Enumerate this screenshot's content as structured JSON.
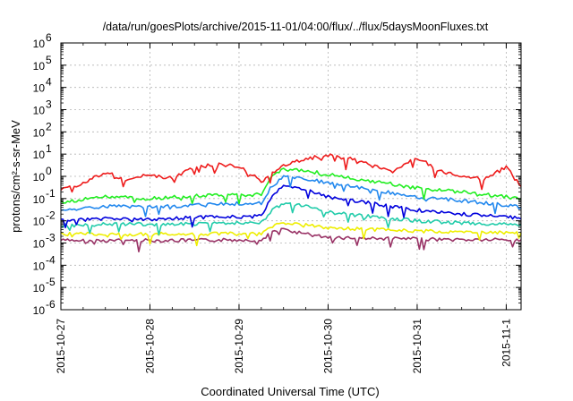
{
  "chart_data": {
    "type": "line",
    "title": "/data/run/goesPlots/archive/2015-11-01/04:00/flux/../flux/5daysMoonFluxes.txt",
    "xlabel": "Coordinated Universal Time (UTC)",
    "ylabel": "protons/cm²-s-sr-MeV",
    "yscale": "log",
    "ylim": [
      1e-06,
      1000000.0
    ],
    "xlim": [
      "2015-10-27T00:00",
      "2015-11-01T04:00"
    ],
    "grid": true,
    "legend": "none",
    "y_tick_labels": [
      {
        "base": "10",
        "exp": "-6"
      },
      {
        "base": "10",
        "exp": "-5"
      },
      {
        "base": "10",
        "exp": "-4"
      },
      {
        "base": "10",
        "exp": "-3"
      },
      {
        "base": "10",
        "exp": "-2"
      },
      {
        "base": "10",
        "exp": "-1"
      },
      {
        "base": "10",
        "exp": "0"
      },
      {
        "base": "10",
        "exp": "1"
      },
      {
        "base": "10",
        "exp": "2"
      },
      {
        "base": "10",
        "exp": "3"
      },
      {
        "base": "10",
        "exp": "4"
      },
      {
        "base": "10",
        "exp": "5"
      },
      {
        "base": "10",
        "exp": "6"
      }
    ],
    "x_ticks": [
      {
        "label": "2015-10-27",
        "time": "2015-10-27T00:00"
      },
      {
        "label": "2015-10-28",
        "time": "2015-10-28T00:00"
      },
      {
        "label": "2015-10-29",
        "time": "2015-10-29T00:00"
      },
      {
        "label": "2015-10-30",
        "time": "2015-10-30T00:00"
      },
      {
        "label": "2015-10-31",
        "time": "2015-10-31T00:00"
      },
      {
        "label": "2015-11-1",
        "time": "2015-11-01T00:00"
      }
    ],
    "series": [
      {
        "color": "#ee1c1c",
        "x": [
          "2015-10-27T00:00",
          "2015-10-27T06:00",
          "2015-10-27T12:00",
          "2015-10-27T18:00",
          "2015-10-28T00:00",
          "2015-10-28T06:00",
          "2015-10-28T12:00",
          "2015-10-28T18:00",
          "2015-10-29T00:00",
          "2015-10-29T06:00",
          "2015-10-29T12:00",
          "2015-10-29T18:00",
          "2015-10-30T00:00",
          "2015-10-30T06:00",
          "2015-10-30T12:00",
          "2015-10-30T18:00",
          "2015-10-31T00:00",
          "2015-10-31T06:00",
          "2015-10-31T12:00",
          "2015-10-31T18:00",
          "2015-11-01T00:00",
          "2015-11-01T04:00"
        ],
        "y": [
          0.25,
          0.5,
          1.5,
          0.7,
          1.2,
          0.8,
          2.5,
          3.5,
          3.0,
          0.6,
          3.0,
          6.0,
          9.0,
          6.0,
          3.0,
          1.8,
          7.0,
          1.8,
          1.0,
          0.8,
          2.5,
          0.35
        ]
      },
      {
        "color": "#22ee22",
        "x": [
          "2015-10-27T00:00",
          "2015-10-27T12:00",
          "2015-10-28T00:00",
          "2015-10-28T12:00",
          "2015-10-29T00:00",
          "2015-10-29T06:00",
          "2015-10-29T09:00",
          "2015-10-29T12:00",
          "2015-10-29T18:00",
          "2015-10-30T00:00",
          "2015-10-30T12:00",
          "2015-10-31T00:00",
          "2015-10-31T12:00",
          "2015-11-01T00:00",
          "2015-11-01T04:00"
        ],
        "y": [
          0.07,
          0.12,
          0.1,
          0.13,
          0.15,
          0.15,
          1.0,
          2.0,
          1.8,
          1.2,
          0.6,
          0.3,
          0.2,
          0.12,
          0.1
        ]
      },
      {
        "color": "#2288ee",
        "x": [
          "2015-10-27T00:00",
          "2015-10-27T12:00",
          "2015-10-28T00:00",
          "2015-10-28T12:00",
          "2015-10-29T00:00",
          "2015-10-29T06:00",
          "2015-10-29T09:00",
          "2015-10-29T12:00",
          "2015-10-29T18:00",
          "2015-10-30T00:00",
          "2015-10-30T12:00",
          "2015-10-31T00:00",
          "2015-10-31T12:00",
          "2015-11-01T00:00",
          "2015-11-01T04:00"
        ],
        "y": [
          0.03,
          0.045,
          0.04,
          0.05,
          0.06,
          0.06,
          0.4,
          0.9,
          0.8,
          0.5,
          0.25,
          0.12,
          0.08,
          0.05,
          0.04
        ]
      },
      {
        "color": "#0000dd",
        "x": [
          "2015-10-27T00:00",
          "2015-10-27T12:00",
          "2015-10-28T00:00",
          "2015-10-28T12:00",
          "2015-10-29T00:00",
          "2015-10-29T06:00",
          "2015-10-29T09:00",
          "2015-10-29T12:00",
          "2015-10-29T18:00",
          "2015-10-30T00:00",
          "2015-10-30T12:00",
          "2015-10-31T00:00",
          "2015-10-31T12:00",
          "2015-11-01T00:00",
          "2015-11-01T04:00"
        ],
        "y": [
          0.01,
          0.013,
          0.012,
          0.014,
          0.015,
          0.016,
          0.15,
          0.35,
          0.25,
          0.12,
          0.06,
          0.03,
          0.02,
          0.015,
          0.012
        ]
      },
      {
        "color": "#22ccaa",
        "x": [
          "2015-10-27T00:00",
          "2015-10-27T12:00",
          "2015-10-28T00:00",
          "2015-10-28T12:00",
          "2015-10-29T00:00",
          "2015-10-29T06:00",
          "2015-10-29T09:00",
          "2015-10-29T12:00",
          "2015-10-29T18:00",
          "2015-10-30T00:00",
          "2015-10-30T12:00",
          "2015-10-31T00:00",
          "2015-10-31T12:00",
          "2015-11-01T00:00",
          "2015-11-01T04:00"
        ],
        "y": [
          0.006,
          0.007,
          0.007,
          0.007,
          0.008,
          0.008,
          0.03,
          0.06,
          0.045,
          0.025,
          0.015,
          0.01,
          0.008,
          0.007,
          0.007
        ]
      },
      {
        "color": "#eeee00",
        "x": [
          "2015-10-27T00:00",
          "2015-10-27T12:00",
          "2015-10-28T00:00",
          "2015-10-28T12:00",
          "2015-10-29T00:00",
          "2015-10-29T06:00",
          "2015-10-29T09:00",
          "2015-10-29T12:00",
          "2015-10-29T18:00",
          "2015-10-30T00:00",
          "2015-10-30T12:00",
          "2015-10-31T00:00",
          "2015-10-31T12:00",
          "2015-11-01T00:00",
          "2015-11-01T04:00"
        ],
        "y": [
          0.0025,
          0.0025,
          0.0025,
          0.0025,
          0.0026,
          0.0026,
          0.006,
          0.008,
          0.007,
          0.005,
          0.004,
          0.0035,
          0.003,
          0.003,
          0.003
        ]
      },
      {
        "color": "#993366",
        "x": [
          "2015-10-27T00:00",
          "2015-10-27T12:00",
          "2015-10-28T00:00",
          "2015-10-28T12:00",
          "2015-10-29T00:00",
          "2015-10-29T06:00",
          "2015-10-29T09:00",
          "2015-10-29T12:00",
          "2015-10-29T18:00",
          "2015-10-30T00:00",
          "2015-10-30T12:00",
          "2015-10-31T00:00",
          "2015-10-31T12:00",
          "2015-11-01T00:00",
          "2015-11-01T04:00"
        ],
        "y": [
          0.0013,
          0.0013,
          0.0013,
          0.0013,
          0.0014,
          0.0014,
          0.003,
          0.004,
          0.0025,
          0.0018,
          0.0016,
          0.0015,
          0.0014,
          0.0014,
          0.0014
        ]
      }
    ]
  }
}
